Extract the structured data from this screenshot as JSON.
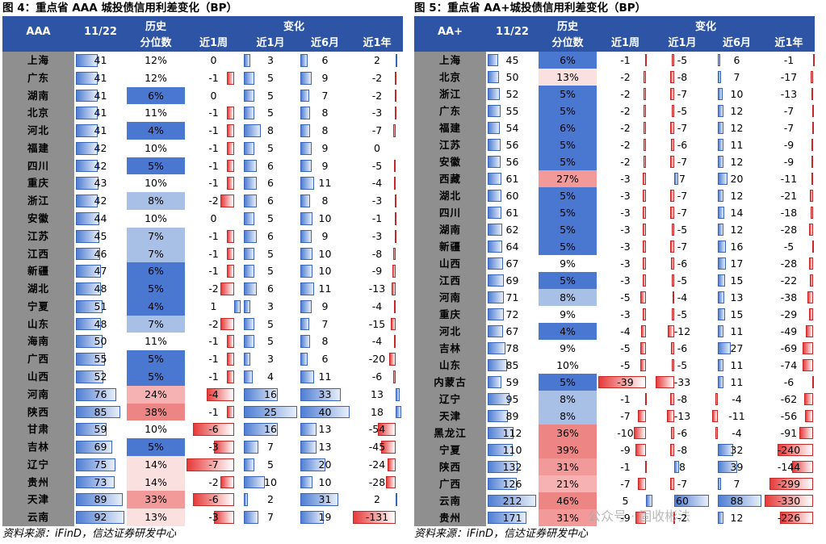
{
  "fig1": {
    "title": "图 4：重点省 AAA 城投债信用利差变化（BP）",
    "header": {
      "region": "AAA",
      "date": "11/22",
      "pct1": "历史",
      "pct2": "分位数",
      "change": "变化",
      "w1": "近1周",
      "m1": "近1月",
      "m6": "近6月",
      "y1": "近1年"
    },
    "rows": [
      {
        "name": "上海",
        "val": 41,
        "pct": "12%",
        "w1": 0,
        "m1": 3,
        "m6": 6,
        "y1": 2
      },
      {
        "name": "广东",
        "val": 41,
        "pct": "12%",
        "w1": -1,
        "m1": 5,
        "m6": 9,
        "y1": -2
      },
      {
        "name": "湖南",
        "val": 41,
        "pct": "6%",
        "w1": 0,
        "m1": 5,
        "m6": 7,
        "y1": -2
      },
      {
        "name": "北京",
        "val": 41,
        "pct": "11%",
        "w1": -1,
        "m1": 5,
        "m6": 8,
        "y1": -3
      },
      {
        "name": "河北",
        "val": 41,
        "pct": "4%",
        "w1": -1,
        "m1": 8,
        "m6": 8,
        "y1": -7
      },
      {
        "name": "福建",
        "val": 42,
        "pct": "10%",
        "w1": -1,
        "m1": 5,
        "m6": 9,
        "y1": 0
      },
      {
        "name": "四川",
        "val": 42,
        "pct": "5%",
        "w1": -1,
        "m1": 6,
        "m6": 9,
        "y1": -5
      },
      {
        "name": "重庆",
        "val": 43,
        "pct": "10%",
        "w1": -1,
        "m1": 6,
        "m6": 11,
        "y1": -4
      },
      {
        "name": "浙江",
        "val": 42,
        "pct": "8%",
        "w1": -2,
        "m1": 6,
        "m6": 8,
        "y1": -3
      },
      {
        "name": "安徽",
        "val": 44,
        "pct": "10%",
        "w1": 0,
        "m1": 5,
        "m6": 10,
        "y1": -1
      },
      {
        "name": "江苏",
        "val": 45,
        "pct": "7%",
        "w1": -1,
        "m1": 6,
        "m6": 9,
        "y1": -3
      },
      {
        "name": "江西",
        "val": 46,
        "pct": "7%",
        "w1": -1,
        "m1": 5,
        "m6": 10,
        "y1": -8
      },
      {
        "name": "新疆",
        "val": 47,
        "pct": "6%",
        "w1": -1,
        "m1": 5,
        "m6": 10,
        "y1": -9
      },
      {
        "name": "湖北",
        "val": 48,
        "pct": "5%",
        "w1": -2,
        "m1": 6,
        "m6": 11,
        "y1": -13
      },
      {
        "name": "宁夏",
        "val": 51,
        "pct": "4%",
        "w1": 1,
        "m1": 3,
        "m6": 9,
        "y1": -4
      },
      {
        "name": "山东",
        "val": 48,
        "pct": "7%",
        "w1": -2,
        "m1": 5,
        "m6": 7,
        "y1": -15
      },
      {
        "name": "海南",
        "val": 50,
        "pct": "11%",
        "w1": -1,
        "m1": 5,
        "m6": 8,
        "y1": -4
      },
      {
        "name": "广西",
        "val": 55,
        "pct": "5%",
        "w1": -1,
        "m1": 3,
        "m6": 6,
        "y1": -20
      },
      {
        "name": "山西",
        "val": 52,
        "pct": "5%",
        "w1": -1,
        "m1": 4,
        "m6": 11,
        "y1": -6
      },
      {
        "name": "河南",
        "val": 76,
        "pct": "24%",
        "w1": -4,
        "m1": 16,
        "m6": 33,
        "y1": 13
      },
      {
        "name": "陕西",
        "val": 85,
        "pct": "38%",
        "w1": -1,
        "m1": 25,
        "m6": 40,
        "y1": 18
      },
      {
        "name": "甘肃",
        "val": 59,
        "pct": "10%",
        "w1": -6,
        "m1": 16,
        "m6": 13,
        "y1": -54
      },
      {
        "name": "吉林",
        "val": 69,
        "pct": "5%",
        "w1": -3,
        "m1": 7,
        "m6": 13,
        "y1": -45
      },
      {
        "name": "辽宁",
        "val": 75,
        "pct": "14%",
        "w1": -7,
        "m1": 5,
        "m6": 20,
        "y1": -24
      },
      {
        "name": "贵州",
        "val": 73,
        "pct": "14%",
        "w1": -2,
        "m1": 10,
        "m6": 10,
        "y1": -28
      },
      {
        "name": "天津",
        "val": 89,
        "pct": "33%",
        "w1": -6,
        "m1": 2,
        "m6": 31,
        "y1": 2
      },
      {
        "name": "云南",
        "val": 92,
        "pct": "13%",
        "w1": -3,
        "m1": 7,
        "m6": 19,
        "y1": -131
      }
    ]
  },
  "fig2": {
    "title": "图 5：重点省 AA+城投债信用利差变化（BP）",
    "header": {
      "region": "AA+",
      "date": "11/22",
      "pct1": "历史",
      "pct2": "分位数",
      "change": "变化",
      "w1": "近1周",
      "m1": "近1月",
      "m6": "近6月",
      "y1": "近1年"
    },
    "rows": [
      {
        "name": "上海",
        "val": 45,
        "pct": "6%",
        "w1": -1,
        "m1": -5,
        "m6": 6,
        "y1": -1
      },
      {
        "name": "北京",
        "val": 50,
        "pct": "13%",
        "w1": -2,
        "m1": -8,
        "m6": 7,
        "y1": -17
      },
      {
        "name": "浙江",
        "val": 52,
        "pct": "5%",
        "w1": -2,
        "m1": -7,
        "m6": 10,
        "y1": -13
      },
      {
        "name": "广东",
        "val": 55,
        "pct": "5%",
        "w1": -2,
        "m1": -5,
        "m6": 12,
        "y1": -7
      },
      {
        "name": "福建",
        "val": 54,
        "pct": "6%",
        "w1": -2,
        "m1": -7,
        "m6": 12,
        "y1": -7
      },
      {
        "name": "江苏",
        "val": 56,
        "pct": "5%",
        "w1": -2,
        "m1": -6,
        "m6": 11,
        "y1": -9
      },
      {
        "name": "安徽",
        "val": 56,
        "pct": "5%",
        "w1": -2,
        "m1": -7,
        "m6": 12,
        "y1": -9
      },
      {
        "name": "西藏",
        "val": 61,
        "pct": "27%",
        "w1": -3,
        "m1": 7,
        "m6": 20,
        "y1": -11
      },
      {
        "name": "湖北",
        "val": 60,
        "pct": "5%",
        "w1": -3,
        "m1": -7,
        "m6": 12,
        "y1": -21
      },
      {
        "name": "四川",
        "val": 61,
        "pct": "5%",
        "w1": -3,
        "m1": -7,
        "m6": 14,
        "y1": -18
      },
      {
        "name": "湖南",
        "val": 62,
        "pct": "5%",
        "w1": -3,
        "m1": -5,
        "m6": 12,
        "y1": -28
      },
      {
        "name": "新疆",
        "val": 64,
        "pct": "5%",
        "w1": -3,
        "m1": -7,
        "m6": 16,
        "y1": -5
      },
      {
        "name": "山西",
        "val": 67,
        "pct": "9%",
        "w1": -3,
        "m1": -6,
        "m6": 17,
        "y1": -28
      },
      {
        "name": "江西",
        "val": 69,
        "pct": "5%",
        "w1": -3,
        "m1": -5,
        "m6": 15,
        "y1": -22
      },
      {
        "name": "河南",
        "val": 71,
        "pct": "8%",
        "w1": -5,
        "m1": -4,
        "m6": 13,
        "y1": -38
      },
      {
        "name": "重庆",
        "val": 72,
        "pct": "9%",
        "w1": -3,
        "m1": -5,
        "m6": 15,
        "y1": -29
      },
      {
        "name": "河北",
        "val": 67,
        "pct": "4%",
        "w1": -4,
        "m1": -12,
        "m6": 11,
        "y1": -49
      },
      {
        "name": "吉林",
        "val": 78,
        "pct": "9%",
        "w1": -5,
        "m1": -6,
        "m6": 27,
        "y1": -69
      },
      {
        "name": "山东",
        "val": 85,
        "pct": "10%",
        "w1": -5,
        "m1": -5,
        "m6": 11,
        "y1": -74
      },
      {
        "name": "内蒙古",
        "val": 59,
        "pct": "5%",
        "w1": -39,
        "m1": -33,
        "m6": 11,
        "y1": -6
      },
      {
        "name": "辽宁",
        "val": 95,
        "pct": "8%",
        "w1": -1,
        "m1": -8,
        "m6": -4,
        "y1": -62
      },
      {
        "name": "天津",
        "val": 89,
        "pct": "8%",
        "w1": -7,
        "m1": -13,
        "m6": -11,
        "y1": -56
      },
      {
        "name": "黑龙江",
        "val": 112,
        "pct": "36%",
        "w1": -10,
        "m1": -6,
        "m6": -4,
        "y1": -91
      },
      {
        "name": "宁夏",
        "val": 110,
        "pct": "39%",
        "w1": -9,
        "m1": -8,
        "m6": 32,
        "y1": -240
      },
      {
        "name": "陕西",
        "val": 132,
        "pct": "31%",
        "w1": -1,
        "m1": 8,
        "m6": 39,
        "y1": -144
      },
      {
        "name": "广西",
        "val": 126,
        "pct": "21%",
        "w1": -7,
        "m1": -7,
        "m6": 7,
        "y1": -299
      },
      {
        "name": "云南",
        "val": 212,
        "pct": "46%",
        "w1": 5,
        "m1": 60,
        "m6": 88,
        "y1": -330
      },
      {
        "name": "贵州",
        "val": 171,
        "pct": "31%",
        "w1": -9,
        "m1": -2,
        "m6": 12,
        "y1": -226
      }
    ]
  },
  "source": "资料来源：iFinD，信达证券研发中心",
  "watermark": "公众号 · 固收彬法"
}
